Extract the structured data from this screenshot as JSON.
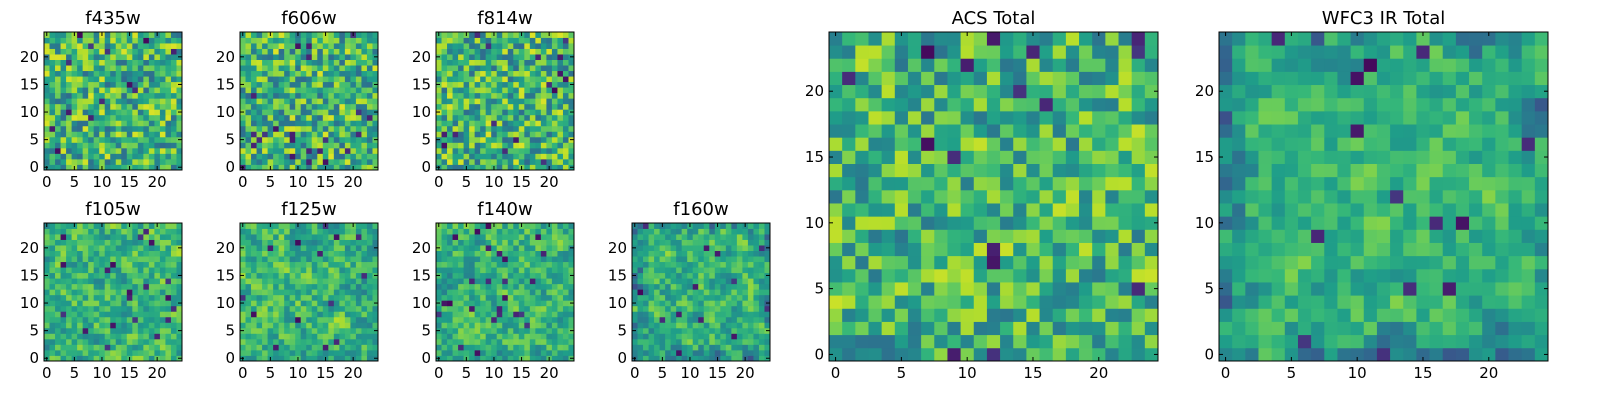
{
  "chart_data": [
    {
      "type": "heatmap",
      "title": "f435w",
      "xticks": [
        "0",
        "5",
        "10",
        "15",
        "20"
      ],
      "yticks": [
        "0",
        "5",
        "10",
        "15",
        "20"
      ],
      "xlim": [
        -0.5,
        24.5
      ],
      "ylim": [
        -0.5,
        24.5
      ],
      "grid": false,
      "colormap": "viridis",
      "size": [
        25,
        25
      ],
      "seed": 11,
      "smooth": 0.0,
      "dark_edges": false
    },
    {
      "type": "heatmap",
      "title": "f606w",
      "xticks": [
        "0",
        "5",
        "10",
        "15",
        "20"
      ],
      "yticks": [
        "0",
        "5",
        "10",
        "15",
        "20"
      ],
      "xlim": [
        -0.5,
        24.5
      ],
      "ylim": [
        -0.5,
        24.5
      ],
      "grid": false,
      "colormap": "viridis",
      "size": [
        25,
        25
      ],
      "seed": 23,
      "smooth": 0.0,
      "dark_edges": false
    },
    {
      "type": "heatmap",
      "title": "f814w",
      "xticks": [
        "0",
        "5",
        "10",
        "15",
        "20"
      ],
      "yticks": [
        "0",
        "5",
        "10",
        "15",
        "20"
      ],
      "xlim": [
        -0.5,
        24.5
      ],
      "ylim": [
        -0.5,
        24.5
      ],
      "grid": false,
      "colormap": "viridis",
      "size": [
        25,
        25
      ],
      "seed": 37,
      "smooth": 0.0,
      "dark_edges": false
    },
    {
      "type": "heatmap",
      "title": "f105w",
      "xticks": [
        "0",
        "5",
        "10",
        "15",
        "20"
      ],
      "yticks": [
        "0",
        "5",
        "10",
        "15",
        "20"
      ],
      "xlim": [
        -0.5,
        24.5
      ],
      "ylim": [
        -0.5,
        24.5
      ],
      "grid": false,
      "colormap": "viridis",
      "size": [
        25,
        25
      ],
      "seed": 41,
      "smooth": 0.45,
      "dark_edges": false
    },
    {
      "type": "heatmap",
      "title": "f125w",
      "xticks": [
        "0",
        "5",
        "10",
        "15",
        "20"
      ],
      "yticks": [
        "0",
        "5",
        "10",
        "15",
        "20"
      ],
      "xlim": [
        -0.5,
        24.5
      ],
      "ylim": [
        -0.5,
        24.5
      ],
      "grid": false,
      "colormap": "viridis",
      "size": [
        25,
        25
      ],
      "seed": 53,
      "smooth": 0.45,
      "dark_edges": false
    },
    {
      "type": "heatmap",
      "title": "f140w",
      "xticks": [
        "0",
        "5",
        "10",
        "15",
        "20"
      ],
      "yticks": [
        "0",
        "5",
        "10",
        "15",
        "20"
      ],
      "xlim": [
        -0.5,
        24.5
      ],
      "ylim": [
        -0.5,
        24.5
      ],
      "grid": false,
      "colormap": "viridis",
      "size": [
        25,
        25
      ],
      "seed": 67,
      "smooth": 0.5,
      "dark_edges": false
    },
    {
      "type": "heatmap",
      "title": "f160w",
      "xticks": [
        "0",
        "5",
        "10",
        "15",
        "20"
      ],
      "yticks": [
        "0",
        "5",
        "10",
        "15",
        "20"
      ],
      "xlim": [
        -0.5,
        24.5
      ],
      "ylim": [
        -0.5,
        24.5
      ],
      "grid": false,
      "colormap": "viridis",
      "size": [
        25,
        25
      ],
      "seed": 79,
      "smooth": 0.5,
      "dark_edges": true
    },
    {
      "type": "heatmap",
      "title": "ACS Total",
      "xticks": [
        "0",
        "5",
        "10",
        "15",
        "20"
      ],
      "yticks": [
        "0",
        "5",
        "10",
        "15",
        "20"
      ],
      "xlim": [
        -0.5,
        24.5
      ],
      "ylim": [
        -0.5,
        24.5
      ],
      "grid": false,
      "colormap": "viridis",
      "size": [
        25,
        25
      ],
      "seed": 97,
      "smooth": 0.15,
      "dark_edges": false
    },
    {
      "type": "heatmap",
      "title": "WFC3 IR Total",
      "xticks": [
        "0",
        "5",
        "10",
        "15",
        "20"
      ],
      "yticks": [
        "0",
        "5",
        "10",
        "15",
        "20"
      ],
      "xlim": [
        -0.5,
        24.5
      ],
      "ylim": [
        -0.5,
        24.5
      ],
      "grid": false,
      "colormap": "viridis",
      "size": [
        25,
        25
      ],
      "seed": 113,
      "smooth": 0.6,
      "dark_edges": true
    }
  ]
}
